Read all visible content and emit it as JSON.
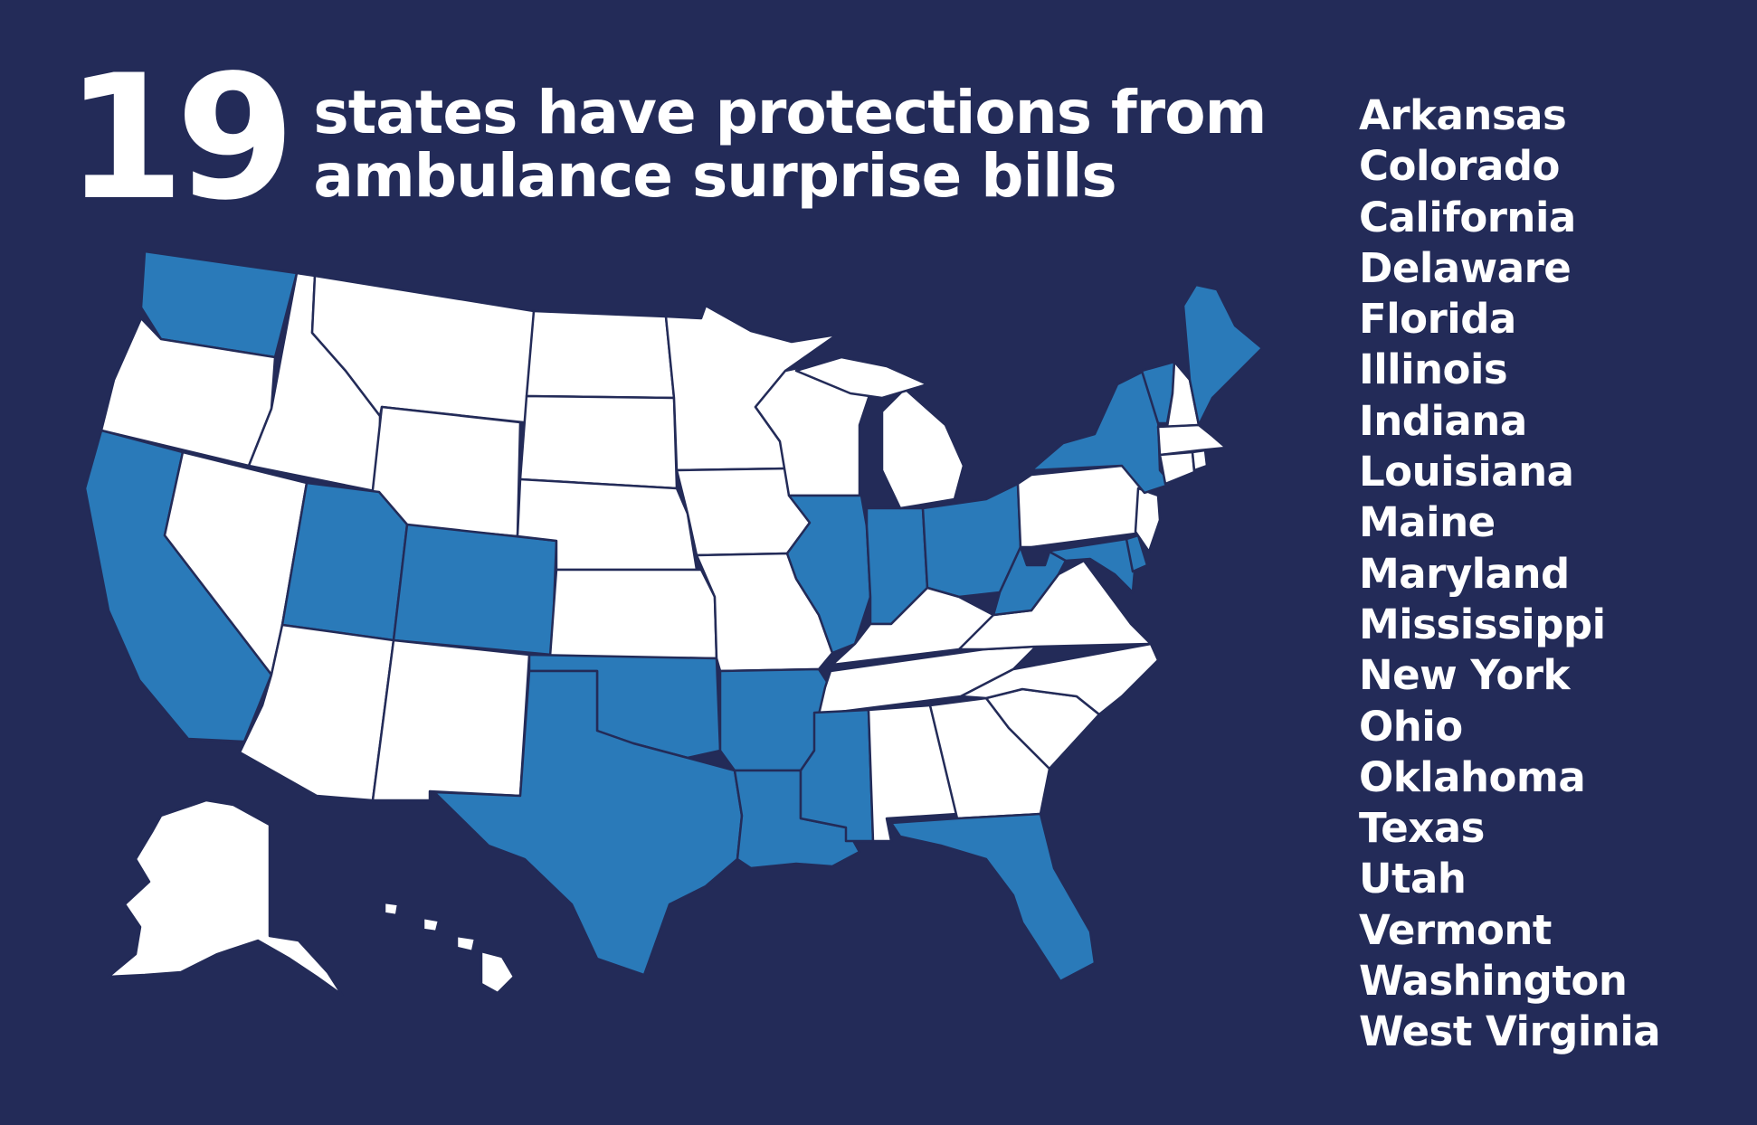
{
  "headline": {
    "count": "19",
    "line1": "states have protections from",
    "line2": "ambulance surprise bills"
  },
  "colors": {
    "background": "#232b58",
    "protected": "#2a7ab9",
    "unprotected": "#ffffff",
    "border": "#232b58"
  },
  "protected_states": [
    "Arkansas",
    "Colorado",
    "California",
    "Delaware",
    "Florida",
    "Illinois",
    "Indiana",
    "Louisiana",
    "Maine",
    "Maryland",
    "Mississippi",
    "New York",
    "Ohio",
    "Oklahoma",
    "Texas",
    "Utah",
    "Vermont",
    "Washington",
    "West Virginia"
  ],
  "map": {
    "type": "choropleth",
    "region": "United States"
  }
}
